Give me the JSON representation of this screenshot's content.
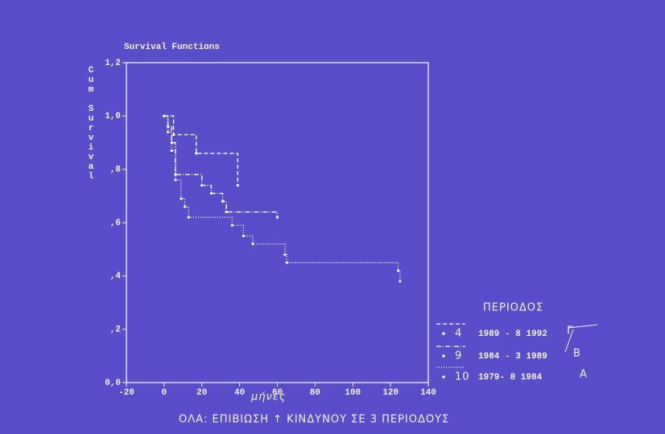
{
  "chart_data": {
    "type": "step",
    "title": "Survival Functions",
    "y_label": "Cum Survival",
    "x_label": "μήνες",
    "caption": "ΟΛΑ: ΕΠΙΒΙΩΣΗ ↑ ΚΙΝΔΥΝΟΥ ΣΕ 3 ΠΕΡΙΟΔΟΥΣ",
    "legend_title": "ΠΕΡΙΟΔΟΣ",
    "xlim": [
      -20,
      140
    ],
    "xticks": [
      -20,
      0,
      20,
      40,
      60,
      80,
      100,
      120,
      140
    ],
    "ylim": [
      0,
      1.2
    ],
    "yticks": [
      {
        "value": 0,
        "label": "0,0"
      },
      {
        "value": 0.2,
        "label": ",2"
      },
      {
        "value": 0.4,
        "label": ",4"
      },
      {
        "value": 0.6,
        "label": ",6"
      },
      {
        "value": 0.8,
        "label": ",8"
      },
      {
        "value": 1.0,
        "label": "1,0"
      },
      {
        "value": 1.2,
        "label": "1,2"
      }
    ],
    "series": [
      {
        "name": "4",
        "period": "1989 - 8  1992",
        "group": "Γ",
        "color": "#ffffff",
        "dash": "5 3",
        "x": [
          0,
          5,
          17,
          39
        ],
        "values": [
          1.0,
          0.93,
          0.86,
          0.74
        ]
      },
      {
        "name": "9",
        "period": "1984 - 3  1989",
        "group": "Β",
        "color": "#ffffff",
        "dash": "6 2 1 2",
        "x": [
          0,
          2,
          4,
          6,
          20,
          25,
          31,
          33,
          60
        ],
        "values": [
          1.0,
          0.96,
          0.9,
          0.78,
          0.74,
          0.71,
          0.68,
          0.64,
          0.62
        ]
      },
      {
        "name": "10",
        "period": "1979- 8  1984",
        "group": "Α",
        "color": "#ffffff",
        "dash": "1 2",
        "x": [
          0,
          2,
          4,
          6,
          9,
          11,
          13,
          36,
          42,
          47,
          64,
          65,
          124,
          125
        ],
        "values": [
          1.0,
          0.94,
          0.87,
          0.76,
          0.69,
          0.66,
          0.62,
          0.59,
          0.55,
          0.52,
          0.48,
          0.45,
          0.42,
          0.38
        ]
      }
    ]
  }
}
